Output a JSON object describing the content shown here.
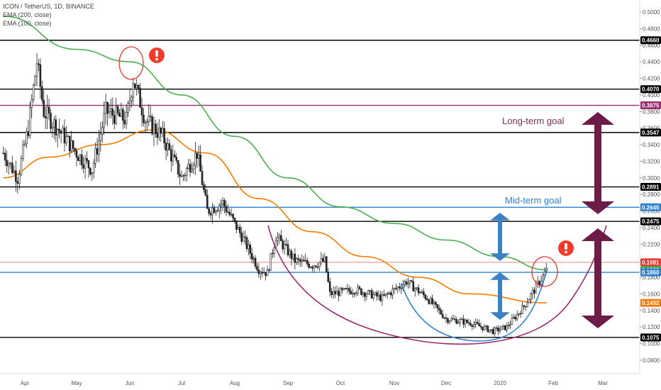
{
  "chart_data": {
    "type": "candlestick",
    "title": "ICON / TetherUS, 1D, BINANCE",
    "indicators": [
      {
        "name": "EMA (200, close)",
        "color": "#4caf50"
      },
      {
        "name": "EMA (100, close)",
        "color": "#f57c00"
      }
    ],
    "x_ticks": [
      "Apr",
      "May",
      "Jun",
      "Jul",
      "Aug",
      "Sep",
      "Oct",
      "Nov",
      "Dec",
      "2020",
      "Feb",
      "Mar"
    ],
    "y_ticks": [
      "0.5000",
      "0.4800",
      "0.4600",
      "0.4400",
      "0.4200",
      "0.4000",
      "0.3800",
      "0.3600",
      "0.3400",
      "0.3200",
      "0.3000",
      "0.2800",
      "0.2600",
      "0.2400",
      "0.2200",
      "0.2000",
      "0.1800",
      "0.1600",
      "0.1400",
      "0.1200",
      "0.1000",
      "0.0800"
    ],
    "ylim": [
      0.07,
      0.51
    ],
    "horizontal_levels": [
      {
        "value": 0.466,
        "label": "0.4660",
        "color": "#000000"
      },
      {
        "value": 0.407,
        "label": "0.4070",
        "color": "#000000"
      },
      {
        "value": 0.3875,
        "label": "0.3875",
        "color": "#9c2a6e"
      },
      {
        "value": 0.3547,
        "label": "0.3547",
        "color": "#000000"
      },
      {
        "value": 0.2891,
        "label": "0.2891",
        "color": "#000000"
      },
      {
        "value": 0.2645,
        "label": "0.2645",
        "color": "#2f80d0"
      },
      {
        "value": 0.2475,
        "label": "0.2475",
        "color": "#000000"
      },
      {
        "value": 0.186,
        "label": "",
        "color": "#2f80d0"
      },
      {
        "value": 0.1075,
        "label": "0.1075",
        "color": "#000000"
      }
    ],
    "price_badges": [
      {
        "value": 0.1981,
        "label": "0.1981",
        "color": "#e53935"
      },
      {
        "value": 0.1889,
        "label": "0.1889",
        "color": "#43a047"
      },
      {
        "value": 0.186,
        "label": "0.1860",
        "color": "#2f80d0"
      },
      {
        "value": 0.1492,
        "label": "0.1492",
        "color": "#f57c00"
      }
    ],
    "annotations": [
      {
        "text": "Long-term goal",
        "color": "#7b2d5a"
      },
      {
        "text": "Mid-term goal",
        "color": "#2f80d0"
      }
    ],
    "price_path": [
      {
        "date": "2019-03-20",
        "close": 0.33
      },
      {
        "date": "2019-03-28",
        "close": 0.3
      },
      {
        "date": "2019-04-03",
        "close": 0.36
      },
      {
        "date": "2019-04-08",
        "close": 0.44
      },
      {
        "date": "2019-04-12",
        "close": 0.38
      },
      {
        "date": "2019-04-20",
        "close": 0.36
      },
      {
        "date": "2019-05-01",
        "close": 0.33
      },
      {
        "date": "2019-05-10",
        "close": 0.31
      },
      {
        "date": "2019-05-18",
        "close": 0.38
      },
      {
        "date": "2019-05-30",
        "close": 0.37
      },
      {
        "date": "2019-06-03",
        "close": 0.42
      },
      {
        "date": "2019-06-10",
        "close": 0.37
      },
      {
        "date": "2019-06-20",
        "close": 0.35
      },
      {
        "date": "2019-07-01",
        "close": 0.3
      },
      {
        "date": "2019-07-10",
        "close": 0.33
      },
      {
        "date": "2019-07-16",
        "close": 0.26
      },
      {
        "date": "2019-07-25",
        "close": 0.27
      },
      {
        "date": "2019-08-05",
        "close": 0.23
      },
      {
        "date": "2019-08-15",
        "close": 0.19
      },
      {
        "date": "2019-08-20",
        "close": 0.185
      },
      {
        "date": "2019-08-25",
        "close": 0.23
      },
      {
        "date": "2019-09-05",
        "close": 0.2
      },
      {
        "date": "2019-09-15",
        "close": 0.195
      },
      {
        "date": "2019-09-22",
        "close": 0.2
      },
      {
        "date": "2019-09-25",
        "close": 0.16
      },
      {
        "date": "2019-10-10",
        "close": 0.165
      },
      {
        "date": "2019-10-25",
        "close": 0.155
      },
      {
        "date": "2019-11-08",
        "close": 0.175
      },
      {
        "date": "2019-11-20",
        "close": 0.155
      },
      {
        "date": "2019-12-01",
        "close": 0.13
      },
      {
        "date": "2019-12-15",
        "close": 0.125
      },
      {
        "date": "2019-12-28",
        "close": 0.115
      },
      {
        "date": "2020-01-05",
        "close": 0.12
      },
      {
        "date": "2020-01-15",
        "close": 0.145
      },
      {
        "date": "2020-01-28",
        "close": 0.188
      }
    ],
    "ema200": [
      {
        "date": "2019-03-20",
        "value": 0.495
      },
      {
        "date": "2019-05-01",
        "value": 0.455
      },
      {
        "date": "2019-06-01",
        "value": 0.44
      },
      {
        "date": "2019-07-01",
        "value": 0.4
      },
      {
        "date": "2019-08-01",
        "value": 0.35
      },
      {
        "date": "2019-09-01",
        "value": 0.3
      },
      {
        "date": "2019-10-01",
        "value": 0.265
      },
      {
        "date": "2019-11-01",
        "value": 0.245
      },
      {
        "date": "2019-12-01",
        "value": 0.225
      },
      {
        "date": "2020-01-01",
        "value": 0.205
      },
      {
        "date": "2020-01-28",
        "value": 0.1889
      }
    ],
    "ema100": [
      {
        "date": "2019-03-20",
        "value": 0.3
      },
      {
        "date": "2019-04-15",
        "value": 0.325
      },
      {
        "date": "2019-05-15",
        "value": 0.34
      },
      {
        "date": "2019-06-15",
        "value": 0.358
      },
      {
        "date": "2019-07-15",
        "value": 0.33
      },
      {
        "date": "2019-08-15",
        "value": 0.275
      },
      {
        "date": "2019-09-15",
        "value": 0.235
      },
      {
        "date": "2019-10-15",
        "value": 0.205
      },
      {
        "date": "2019-11-15",
        "value": 0.18
      },
      {
        "date": "2019-12-15",
        "value": 0.16
      },
      {
        "date": "2020-01-28",
        "value": 0.1492
      }
    ]
  }
}
